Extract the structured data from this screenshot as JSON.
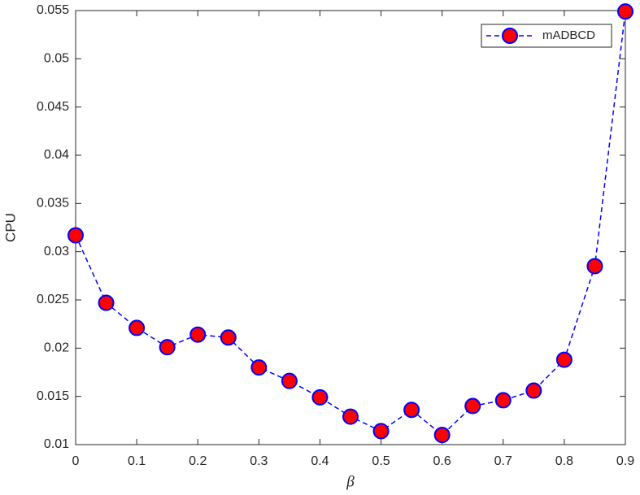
{
  "chart_data": {
    "type": "line",
    "xlabel": "β",
    "ylabel": "CPU",
    "x": [
      0,
      0.05,
      0.1,
      0.15,
      0.2,
      0.25,
      0.3,
      0.35,
      0.4,
      0.45,
      0.5,
      0.55,
      0.6,
      0.65,
      0.7,
      0.75,
      0.8,
      0.85,
      0.9
    ],
    "series": [
      {
        "name": "mADBCD",
        "color": "#0000ff",
        "marker_color": "#ff0000",
        "values": [
          0.0317,
          0.0247,
          0.0221,
          0.0201,
          0.0214,
          0.0211,
          0.018,
          0.0166,
          0.0149,
          0.0129,
          0.0114,
          0.0136,
          0.011,
          0.014,
          0.0146,
          0.0156,
          0.0188,
          0.0285,
          0.0549
        ]
      }
    ],
    "xlim": [
      0,
      0.9
    ],
    "xticks": [
      0,
      0.1,
      0.2,
      0.3,
      0.4,
      0.5,
      0.6,
      0.7,
      0.8,
      0.9
    ],
    "ylim": [
      0.01,
      0.055
    ],
    "yticks": [
      0.01,
      0.015,
      0.02,
      0.025,
      0.03,
      0.035,
      0.04,
      0.045,
      0.05,
      0.055
    ],
    "legend": "northeast",
    "line_style": "dashed"
  }
}
